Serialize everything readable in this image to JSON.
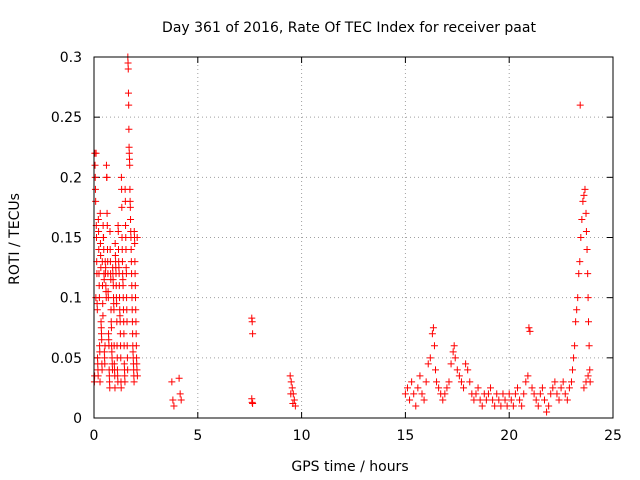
{
  "chart_data": {
    "type": "scatter",
    "title": "Day 361 of 2016, Rate Of TEC Index for receiver paat",
    "xlabel": "GPS time / hours",
    "ylabel": "ROTI / TECUs",
    "xlim": [
      0,
      25
    ],
    "ylim": [
      0,
      0.3
    ],
    "x_ticks": [
      0,
      5,
      10,
      15,
      20,
      25
    ],
    "x_tick_labels": [
      "0",
      "5",
      "10",
      "15",
      "20",
      "25"
    ],
    "y_ticks": [
      0,
      0.05,
      0.1,
      0.15,
      0.2,
      0.25,
      0.3
    ],
    "y_tick_labels": [
      "0",
      "0.05",
      "0.1",
      "0.15",
      "0.2",
      "0.25",
      "0.3"
    ],
    "grid": true,
    "marker": "plus",
    "color": "#ff0000",
    "points": [
      [
        0.02,
        0.03
      ],
      [
        0.03,
        0.035
      ],
      [
        0.04,
        0.22
      ],
      [
        0.05,
        0.21
      ],
      [
        0.06,
        0.2
      ],
      [
        0.07,
        0.19
      ],
      [
        0.08,
        0.18
      ],
      [
        0.09,
        0.1
      ],
      [
        0.1,
        0.22
      ],
      [
        0.11,
        0.16
      ],
      [
        0.12,
        0.15
      ],
      [
        0.13,
        0.13
      ],
      [
        0.14,
        0.12
      ],
      [
        0.15,
        0.095
      ],
      [
        0.16,
        0.09
      ],
      [
        0.17,
        0.05
      ],
      [
        0.18,
        0.045
      ],
      [
        0.19,
        0.04
      ],
      [
        0.2,
        0.035
      ],
      [
        0.21,
        0.165
      ],
      [
        0.22,
        0.155
      ],
      [
        0.23,
        0.14
      ],
      [
        0.24,
        0.12
      ],
      [
        0.25,
        0.11
      ],
      [
        0.26,
        0.1
      ],
      [
        0.27,
        0.06
      ],
      [
        0.28,
        0.055
      ],
      [
        0.29,
        0.03
      ],
      [
        0.3,
        0.17
      ],
      [
        0.31,
        0.145
      ],
      [
        0.32,
        0.135
      ],
      [
        0.33,
        0.125
      ],
      [
        0.34,
        0.08
      ],
      [
        0.35,
        0.075
      ],
      [
        0.36,
        0.07
      ],
      [
        0.37,
        0.065
      ],
      [
        0.38,
        0.045
      ],
      [
        0.39,
        0.04
      ],
      [
        0.4,
        0.13
      ],
      [
        0.41,
        0.11
      ],
      [
        0.42,
        0.095
      ],
      [
        0.43,
        0.085
      ],
      [
        0.44,
        0.16
      ],
      [
        0.45,
        0.15
      ],
      [
        0.46,
        0.15
      ],
      [
        0.47,
        0.14
      ],
      [
        0.48,
        0.12
      ],
      [
        0.49,
        0.115
      ],
      [
        0.5,
        0.055
      ],
      [
        0.51,
        0.05
      ],
      [
        0.52,
        0.045
      ],
      [
        0.53,
        0.06
      ],
      [
        0.54,
        0.13
      ],
      [
        0.55,
        0.12
      ],
      [
        0.56,
        0.125
      ],
      [
        0.57,
        0.11
      ],
      [
        0.58,
        0.105
      ],
      [
        0.59,
        0.1
      ],
      [
        0.6,
        0.21
      ],
      [
        0.61,
        0.2
      ],
      [
        0.62,
        0.2
      ],
      [
        0.63,
        0.17
      ],
      [
        0.64,
        0.16
      ],
      [
        0.65,
        0.14
      ],
      [
        0.66,
        0.13
      ],
      [
        0.67,
        0.12
      ],
      [
        0.68,
        0.105
      ],
      [
        0.69,
        0.1
      ],
      [
        0.7,
        0.07
      ],
      [
        0.71,
        0.065
      ],
      [
        0.72,
        0.06
      ],
      [
        0.73,
        0.04
      ],
      [
        0.74,
        0.035
      ],
      [
        0.75,
        0.03
      ],
      [
        0.76,
        0.025
      ],
      [
        0.77,
        0.155
      ],
      [
        0.78,
        0.14
      ],
      [
        0.79,
        0.13
      ],
      [
        0.8,
        0.12
      ],
      [
        0.81,
        0.115
      ],
      [
        0.82,
        0.09
      ],
      [
        0.83,
        0.08
      ],
      [
        0.84,
        0.075
      ],
      [
        0.85,
        0.06
      ],
      [
        0.86,
        0.055
      ],
      [
        0.87,
        0.05
      ],
      [
        0.88,
        0.045
      ],
      [
        0.89,
        0.04
      ],
      [
        0.9,
        0.125
      ],
      [
        0.91,
        0.12
      ],
      [
        0.92,
        0.115
      ],
      [
        0.93,
        0.11
      ],
      [
        0.94,
        0.1
      ],
      [
        0.95,
        0.095
      ],
      [
        0.96,
        0.09
      ],
      [
        0.97,
        0.06
      ],
      [
        0.98,
        0.045
      ],
      [
        0.99,
        0.04
      ],
      [
        1.0,
        0.035
      ],
      [
        1.01,
        0.025
      ],
      [
        1.02,
        0.145
      ],
      [
        1.03,
        0.135
      ],
      [
        1.04,
        0.13
      ],
      [
        1.05,
        0.125
      ],
      [
        1.06,
        0.12
      ],
      [
        1.07,
        0.11
      ],
      [
        1.08,
        0.1
      ],
      [
        1.09,
        0.095
      ],
      [
        1.1,
        0.08
      ],
      [
        1.11,
        0.06
      ],
      [
        1.12,
        0.05
      ],
      [
        1.13,
        0.04
      ],
      [
        1.14,
        0.035
      ],
      [
        1.15,
        0.03
      ],
      [
        1.16,
        0.16
      ],
      [
        1.17,
        0.155
      ],
      [
        1.18,
        0.14
      ],
      [
        1.19,
        0.13
      ],
      [
        1.2,
        0.125
      ],
      [
        1.21,
        0.12
      ],
      [
        1.22,
        0.11
      ],
      [
        1.23,
        0.1
      ],
      [
        1.24,
        0.09
      ],
      [
        1.25,
        0.085
      ],
      [
        1.26,
        0.08
      ],
      [
        1.27,
        0.07
      ],
      [
        1.28,
        0.06
      ],
      [
        1.29,
        0.05
      ],
      [
        1.3,
        0.03
      ],
      [
        1.31,
        0.025
      ],
      [
        1.32,
        0.2
      ],
      [
        1.33,
        0.19
      ],
      [
        1.34,
        0.175
      ],
      [
        1.35,
        0.15
      ],
      [
        1.36,
        0.14
      ],
      [
        1.37,
        0.13
      ],
      [
        1.38,
        0.12
      ],
      [
        1.39,
        0.115
      ],
      [
        1.4,
        0.11
      ],
      [
        1.41,
        0.1
      ],
      [
        1.42,
        0.09
      ],
      [
        1.43,
        0.08
      ],
      [
        1.44,
        0.07
      ],
      [
        1.45,
        0.06
      ],
      [
        1.46,
        0.045
      ],
      [
        1.47,
        0.04
      ],
      [
        1.48,
        0.035
      ],
      [
        1.49,
        0.03
      ],
      [
        1.5,
        0.19
      ],
      [
        1.51,
        0.18
      ],
      [
        1.52,
        0.16
      ],
      [
        1.53,
        0.15
      ],
      [
        1.54,
        0.14
      ],
      [
        1.55,
        0.125
      ],
      [
        1.56,
        0.12
      ],
      [
        1.57,
        0.1
      ],
      [
        1.58,
        0.09
      ],
      [
        1.59,
        0.08
      ],
      [
        1.6,
        0.06
      ],
      [
        1.61,
        0.05
      ],
      [
        1.62,
        0.04
      ],
      [
        1.63,
        0.3
      ],
      [
        1.64,
        0.295
      ],
      [
        1.65,
        0.29
      ],
      [
        1.66,
        0.27
      ],
      [
        1.67,
        0.26
      ],
      [
        1.68,
        0.24
      ],
      [
        1.69,
        0.225
      ],
      [
        1.7,
        0.22
      ],
      [
        1.71,
        0.215
      ],
      [
        1.72,
        0.21
      ],
      [
        1.73,
        0.19
      ],
      [
        1.74,
        0.18
      ],
      [
        1.75,
        0.175
      ],
      [
        1.76,
        0.165
      ],
      [
        1.77,
        0.155
      ],
      [
        1.78,
        0.15
      ],
      [
        1.79,
        0.14
      ],
      [
        1.8,
        0.13
      ],
      [
        1.81,
        0.12
      ],
      [
        1.82,
        0.11
      ],
      [
        1.83,
        0.1
      ],
      [
        1.84,
        0.09
      ],
      [
        1.85,
        0.08
      ],
      [
        1.86,
        0.07
      ],
      [
        1.87,
        0.06
      ],
      [
        1.88,
        0.055
      ],
      [
        1.89,
        0.05
      ],
      [
        1.9,
        0.045
      ],
      [
        1.91,
        0.04
      ],
      [
        1.92,
        0.035
      ],
      [
        1.93,
        0.03
      ],
      [
        1.94,
        0.155
      ],
      [
        1.95,
        0.15
      ],
      [
        1.96,
        0.145
      ],
      [
        1.97,
        0.13
      ],
      [
        1.98,
        0.12
      ],
      [
        1.99,
        0.11
      ],
      [
        2.0,
        0.1
      ],
      [
        2.01,
        0.09
      ],
      [
        2.02,
        0.08
      ],
      [
        2.03,
        0.07
      ],
      [
        2.04,
        0.06
      ],
      [
        2.05,
        0.05
      ],
      [
        2.06,
        0.045
      ],
      [
        2.07,
        0.04
      ],
      [
        2.08,
        0.15
      ],
      [
        2.09,
        0.035
      ],
      [
        3.75,
        0.03
      ],
      [
        3.8,
        0.015
      ],
      [
        3.85,
        0.01
      ],
      [
        4.1,
        0.033
      ],
      [
        4.15,
        0.02
      ],
      [
        4.2,
        0.015
      ],
      [
        7.6,
        0.083
      ],
      [
        7.62,
        0.08
      ],
      [
        7.64,
        0.07
      ],
      [
        7.6,
        0.016
      ],
      [
        7.62,
        0.013
      ],
      [
        7.64,
        0.012
      ],
      [
        9.45,
        0.035
      ],
      [
        9.5,
        0.03
      ],
      [
        9.55,
        0.025
      ],
      [
        9.6,
        0.02
      ],
      [
        9.65,
        0.015
      ],
      [
        9.7,
        0.01
      ],
      [
        9.48,
        0.02
      ],
      [
        9.58,
        0.012
      ],
      [
        15.0,
        0.02
      ],
      [
        15.1,
        0.025
      ],
      [
        15.2,
        0.015
      ],
      [
        15.3,
        0.03
      ],
      [
        15.4,
        0.02
      ],
      [
        15.5,
        0.01
      ],
      [
        15.6,
        0.025
      ],
      [
        15.7,
        0.035
      ],
      [
        15.8,
        0.02
      ],
      [
        15.9,
        0.015
      ],
      [
        16.0,
        0.03
      ],
      [
        16.1,
        0.045
      ],
      [
        16.2,
        0.05
      ],
      [
        16.3,
        0.07
      ],
      [
        16.35,
        0.075
      ],
      [
        16.4,
        0.06
      ],
      [
        16.45,
        0.04
      ],
      [
        16.5,
        0.03
      ],
      [
        16.6,
        0.025
      ],
      [
        16.7,
        0.02
      ],
      [
        16.8,
        0.015
      ],
      [
        16.9,
        0.02
      ],
      [
        17.0,
        0.025
      ],
      [
        17.1,
        0.03
      ],
      [
        17.2,
        0.045
      ],
      [
        17.3,
        0.055
      ],
      [
        17.35,
        0.06
      ],
      [
        17.4,
        0.05
      ],
      [
        17.5,
        0.04
      ],
      [
        17.6,
        0.035
      ],
      [
        17.7,
        0.03
      ],
      [
        17.8,
        0.025
      ],
      [
        17.9,
        0.045
      ],
      [
        18.0,
        0.04
      ],
      [
        18.1,
        0.03
      ],
      [
        18.2,
        0.02
      ],
      [
        18.3,
        0.015
      ],
      [
        18.4,
        0.02
      ],
      [
        18.5,
        0.025
      ],
      [
        18.6,
        0.015
      ],
      [
        18.7,
        0.01
      ],
      [
        18.8,
        0.02
      ],
      [
        18.9,
        0.015
      ],
      [
        19.0,
        0.02
      ],
      [
        19.1,
        0.025
      ],
      [
        19.2,
        0.015
      ],
      [
        19.3,
        0.01
      ],
      [
        19.4,
        0.02
      ],
      [
        19.5,
        0.015
      ],
      [
        19.6,
        0.01
      ],
      [
        19.7,
        0.02
      ],
      [
        19.8,
        0.015
      ],
      [
        19.9,
        0.01
      ],
      [
        20.0,
        0.02
      ],
      [
        20.1,
        0.015
      ],
      [
        20.2,
        0.01
      ],
      [
        20.3,
        0.02
      ],
      [
        20.4,
        0.025
      ],
      [
        20.5,
        0.015
      ],
      [
        20.6,
        0.01
      ],
      [
        20.7,
        0.02
      ],
      [
        20.8,
        0.03
      ],
      [
        20.9,
        0.035
      ],
      [
        20.95,
        0.075
      ],
      [
        21.0,
        0.072
      ],
      [
        21.1,
        0.025
      ],
      [
        21.2,
        0.02
      ],
      [
        21.3,
        0.015
      ],
      [
        21.4,
        0.01
      ],
      [
        21.5,
        0.02
      ],
      [
        21.6,
        0.025
      ],
      [
        21.7,
        0.015
      ],
      [
        21.8,
        0.005
      ],
      [
        21.9,
        0.01
      ],
      [
        22.0,
        0.02
      ],
      [
        22.1,
        0.025
      ],
      [
        22.2,
        0.03
      ],
      [
        22.3,
        0.02
      ],
      [
        22.4,
        0.015
      ],
      [
        22.5,
        0.025
      ],
      [
        22.6,
        0.03
      ],
      [
        22.7,
        0.02
      ],
      [
        22.8,
        0.015
      ],
      [
        22.9,
        0.025
      ],
      [
        23.0,
        0.03
      ],
      [
        23.05,
        0.04
      ],
      [
        23.1,
        0.05
      ],
      [
        23.15,
        0.06
      ],
      [
        23.2,
        0.08
      ],
      [
        23.25,
        0.09
      ],
      [
        23.3,
        0.1
      ],
      [
        23.35,
        0.12
      ],
      [
        23.4,
        0.13
      ],
      [
        23.42,
        0.26
      ],
      [
        23.45,
        0.15
      ],
      [
        23.5,
        0.165
      ],
      [
        23.55,
        0.18
      ],
      [
        23.6,
        0.185
      ],
      [
        23.65,
        0.19
      ],
      [
        23.7,
        0.17
      ],
      [
        23.72,
        0.155
      ],
      [
        23.75,
        0.14
      ],
      [
        23.78,
        0.12
      ],
      [
        23.8,
        0.1
      ],
      [
        23.82,
        0.08
      ],
      [
        23.85,
        0.06
      ],
      [
        23.88,
        0.04
      ],
      [
        23.9,
        0.03
      ],
      [
        23.6,
        0.025
      ],
      [
        23.7,
        0.03
      ],
      [
        23.8,
        0.035
      ]
    ]
  }
}
